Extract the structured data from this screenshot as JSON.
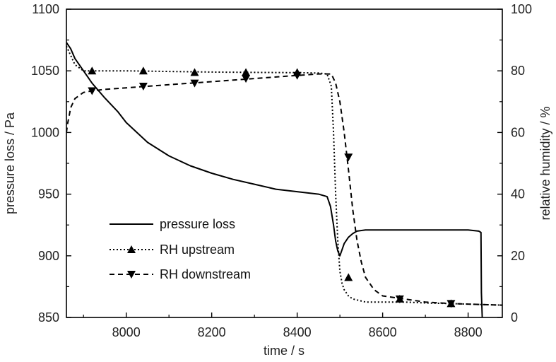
{
  "chart_data": {
    "type": "line",
    "title": "",
    "xlabel": "time / s",
    "ylabel_left": "pressure loss / Pa",
    "ylabel_right": "relative humidity / %",
    "xlim": [
      7860,
      8880
    ],
    "ylim_left": [
      850,
      1100
    ],
    "ylim_right": [
      0,
      100
    ],
    "x_ticks": [
      8000,
      8200,
      8400,
      8600,
      8800
    ],
    "y_left_ticks": [
      850,
      900,
      950,
      1000,
      1050,
      1100
    ],
    "y_right_ticks": [
      0,
      20,
      40,
      60,
      80,
      100
    ],
    "grid": false,
    "legend_position": "lower-left",
    "series": [
      {
        "name": "pressure loss",
        "axis": "left",
        "line_style": "solid",
        "x": [
          7860,
          7870,
          7880,
          7900,
          7920,
          7950,
          7980,
          8000,
          8050,
          8100,
          8150,
          8200,
          8250,
          8300,
          8350,
          8400,
          8450,
          8470,
          8478,
          8485,
          8490,
          8495,
          8500,
          8505,
          8510,
          8520,
          8530,
          8540,
          8560,
          8600,
          8650,
          8700,
          8750,
          8800,
          8825,
          8830,
          8831,
          8833
        ],
        "y": [
          1073,
          1068,
          1060,
          1050,
          1040,
          1028,
          1017,
          1008,
          992,
          981,
          973,
          967,
          962,
          958,
          954,
          952,
          950,
          948,
          940,
          925,
          912,
          904,
          900,
          905,
          910,
          915,
          918,
          920,
          921,
          921,
          921,
          921,
          921,
          921,
          920,
          919,
          870,
          850
        ]
      },
      {
        "name": "RH upstream",
        "axis": "right",
        "line_style": "dotted",
        "marker": "triangle-up",
        "x": [
          7860,
          7880,
          7900,
          7920,
          8000,
          8100,
          8200,
          8300,
          8400,
          8450,
          8470,
          8480,
          8485,
          8490,
          8495,
          8500,
          8505,
          8510,
          8520,
          8530,
          8560,
          8600,
          8650,
          8700,
          8760,
          8830,
          8880
        ],
        "y": [
          88,
          82,
          80,
          80,
          80,
          79.8,
          79.6,
          79.5,
          79.4,
          79.3,
          79,
          75,
          60,
          40,
          25,
          15,
          11,
          9,
          7,
          6,
          5,
          5,
          5,
          4.7,
          4.5,
          4.2,
          4
        ],
        "marker_x": [
          7920,
          8040,
          8160,
          8280,
          8400,
          8520,
          8640,
          8760
        ],
        "marker_y": [
          80,
          80,
          79.5,
          79.5,
          79.5,
          13,
          6,
          4.5
        ]
      },
      {
        "name": "RH downstream",
        "axis": "right",
        "line_style": "dashed",
        "marker": "triangle-down",
        "x": [
          7860,
          7863,
          7866,
          7870,
          7880,
          7900,
          7920,
          7950,
          8000,
          8100,
          8200,
          8300,
          8400,
          8450,
          8480,
          8490,
          8500,
          8510,
          8520,
          8530,
          8540,
          8550,
          8560,
          8580,
          8600,
          8650,
          8700,
          8760,
          8830,
          8880
        ],
        "y": [
          60,
          63,
          65,
          68,
          71,
          73,
          73.5,
          74,
          74.5,
          75.5,
          76.5,
          77.5,
          78.5,
          79,
          79,
          76,
          70,
          60,
          48,
          35,
          25,
          18,
          13,
          9,
          7,
          6,
          5,
          4.5,
          4.2,
          4
        ],
        "marker_x": [
          7920,
          8040,
          8160,
          8280,
          8400,
          8520,
          8640,
          8760
        ],
        "marker_y": [
          73.5,
          75,
          76,
          77.5,
          78.5,
          52,
          6,
          4.5
        ]
      }
    ]
  }
}
